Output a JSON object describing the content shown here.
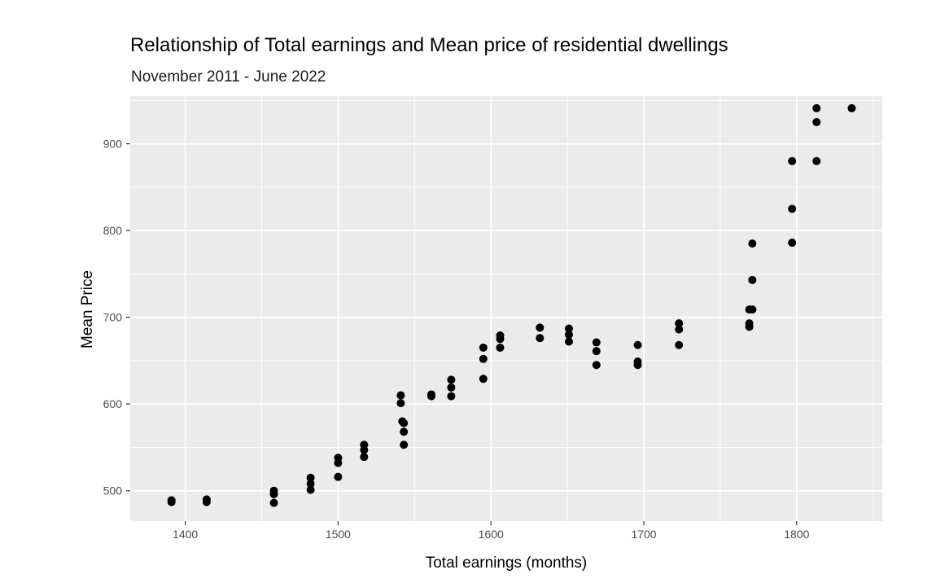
{
  "chart_data": {
    "type": "scatter",
    "title": "Relationship of Total earnings and Mean price of residential dwellings",
    "subtitle": "November 2011 - June 2022",
    "xlabel": "Total earnings (months)",
    "ylabel": "Mean Price",
    "xlim": [
      1364,
      1856
    ],
    "ylim": [
      465,
      955
    ],
    "x_ticks": [
      1400,
      1500,
      1600,
      1700,
      1800
    ],
    "y_ticks": [
      500,
      600,
      700,
      800,
      900
    ],
    "x_tick_labels": [
      "1400",
      "1500",
      "1600",
      "1700",
      "1800"
    ],
    "y_tick_labels": [
      "500",
      "600",
      "700",
      "800",
      "900"
    ],
    "grid": true,
    "colors": {
      "panel": "#ebebeb",
      "grid": "#ffffff",
      "point": "#000000",
      "tick": "#4d4d4d"
    },
    "points": [
      {
        "x": 1391,
        "y": 489
      },
      {
        "x": 1391,
        "y": 487
      },
      {
        "x": 1414,
        "y": 490
      },
      {
        "x": 1414,
        "y": 487
      },
      {
        "x": 1458,
        "y": 500
      },
      {
        "x": 1458,
        "y": 496
      },
      {
        "x": 1458,
        "y": 486
      },
      {
        "x": 1482,
        "y": 515
      },
      {
        "x": 1482,
        "y": 508
      },
      {
        "x": 1482,
        "y": 501
      },
      {
        "x": 1500,
        "y": 538
      },
      {
        "x": 1500,
        "y": 532
      },
      {
        "x": 1500,
        "y": 516
      },
      {
        "x": 1517,
        "y": 553
      },
      {
        "x": 1517,
        "y": 547
      },
      {
        "x": 1517,
        "y": 539
      },
      {
        "x": 1541,
        "y": 610
      },
      {
        "x": 1541,
        "y": 601
      },
      {
        "x": 1542,
        "y": 580
      },
      {
        "x": 1543,
        "y": 578
      },
      {
        "x": 1543,
        "y": 568
      },
      {
        "x": 1543,
        "y": 553
      },
      {
        "x": 1561,
        "y": 611
      },
      {
        "x": 1561,
        "y": 609
      },
      {
        "x": 1574,
        "y": 628
      },
      {
        "x": 1574,
        "y": 619
      },
      {
        "x": 1574,
        "y": 609
      },
      {
        "x": 1595,
        "y": 665
      },
      {
        "x": 1595,
        "y": 652
      },
      {
        "x": 1595,
        "y": 629
      },
      {
        "x": 1606,
        "y": 679
      },
      {
        "x": 1606,
        "y": 675
      },
      {
        "x": 1606,
        "y": 665
      },
      {
        "x": 1632,
        "y": 688
      },
      {
        "x": 1632,
        "y": 676
      },
      {
        "x": 1651,
        "y": 687
      },
      {
        "x": 1651,
        "y": 680
      },
      {
        "x": 1651,
        "y": 672
      },
      {
        "x": 1669,
        "y": 671
      },
      {
        "x": 1669,
        "y": 661
      },
      {
        "x": 1669,
        "y": 645
      },
      {
        "x": 1696,
        "y": 668
      },
      {
        "x": 1696,
        "y": 649
      },
      {
        "x": 1696,
        "y": 645
      },
      {
        "x": 1723,
        "y": 693
      },
      {
        "x": 1723,
        "y": 686
      },
      {
        "x": 1723,
        "y": 668
      },
      {
        "x": 1769,
        "y": 709
      },
      {
        "x": 1769,
        "y": 693
      },
      {
        "x": 1769,
        "y": 689
      },
      {
        "x": 1771,
        "y": 785
      },
      {
        "x": 1771,
        "y": 743
      },
      {
        "x": 1771,
        "y": 709
      },
      {
        "x": 1797,
        "y": 880
      },
      {
        "x": 1797,
        "y": 825
      },
      {
        "x": 1797,
        "y": 786
      },
      {
        "x": 1813,
        "y": 941
      },
      {
        "x": 1813,
        "y": 925
      },
      {
        "x": 1813,
        "y": 880
      },
      {
        "x": 1836,
        "y": 941
      }
    ]
  }
}
